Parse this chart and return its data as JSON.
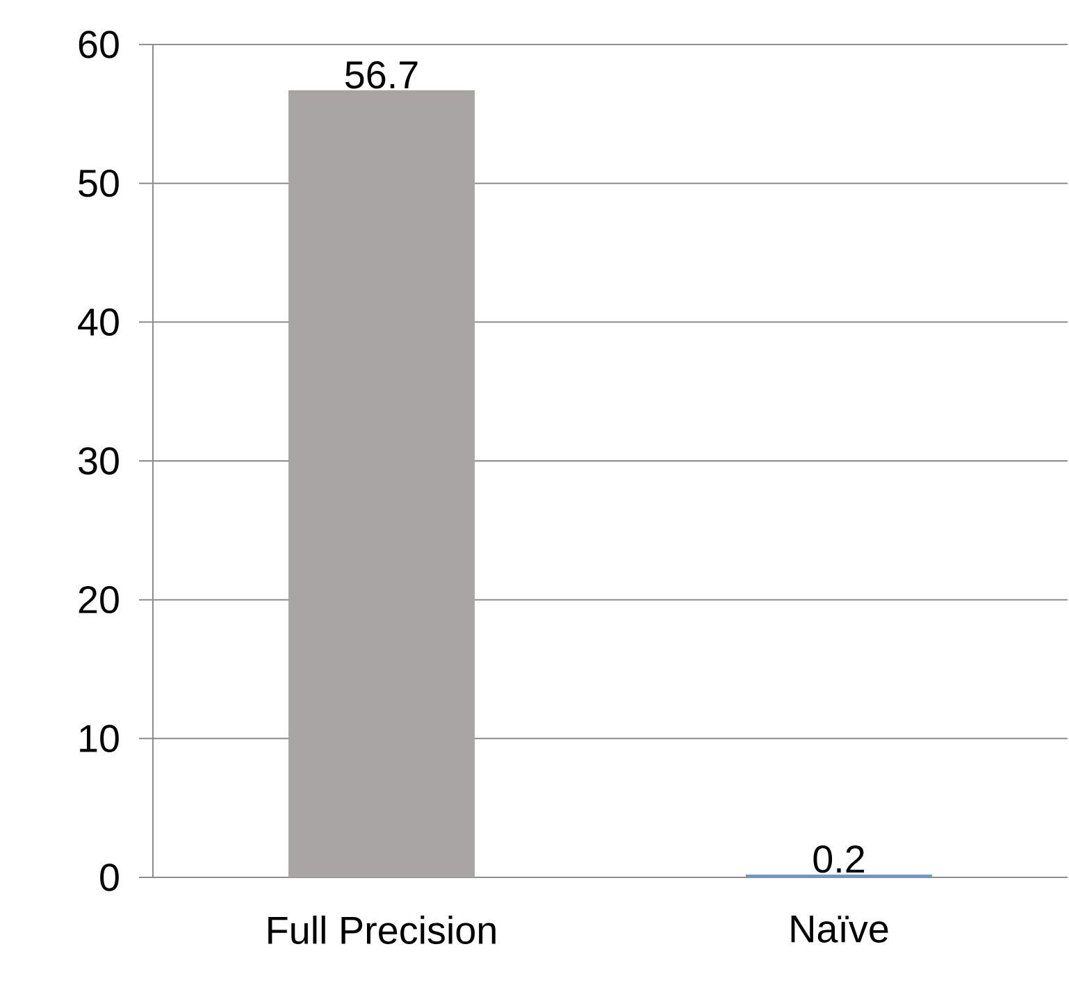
{
  "chart_data": {
    "type": "bar",
    "categories": [
      "Full Precision",
      "Naïve"
    ],
    "values": [
      56.7,
      0.2
    ],
    "colors": [
      "#a9a5a4",
      "#6f97c8"
    ],
    "ylim": [
      0,
      60
    ],
    "yticks": [
      0,
      10,
      20,
      30,
      40,
      50,
      60
    ],
    "grid": "y",
    "data_labels": true
  }
}
